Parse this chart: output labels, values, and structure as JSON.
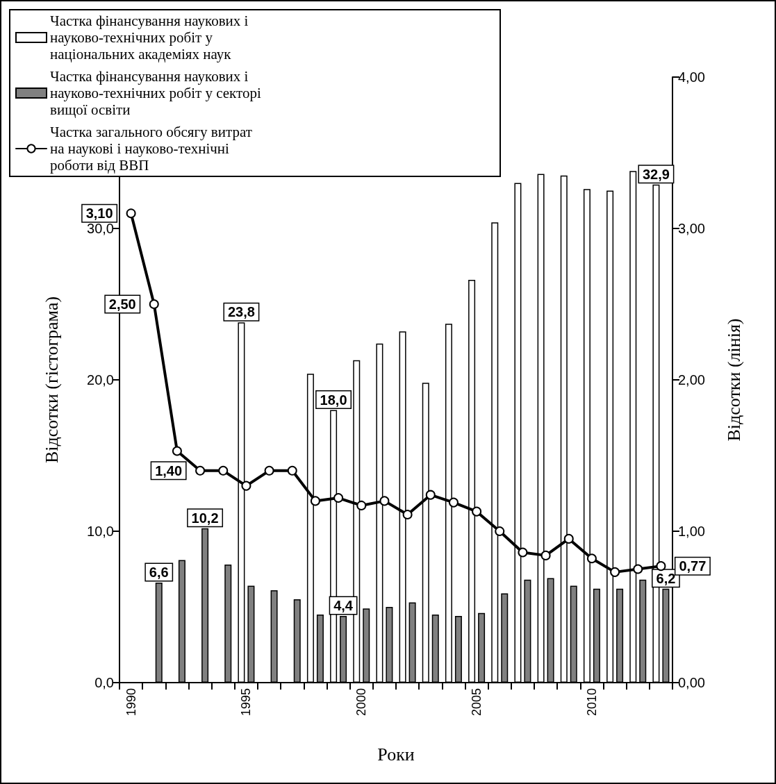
{
  "chart_data": {
    "type": "bar",
    "xlabel": "Роки",
    "ylabel": "Відсотки (гістограма)",
    "y2label": "Відсотки (лінія)",
    "categories": [
      "1990",
      null,
      null,
      null,
      null,
      "1995",
      null,
      null,
      null,
      null,
      "2000",
      null,
      null,
      null,
      null,
      "2005",
      null,
      null,
      null,
      null,
      "2010",
      null,
      null,
      null
    ],
    "series": [
      {
        "name": "Частка фінансування наукових і науково-технічних робіт у національних академіях наук",
        "color": "#ffffff",
        "values": [
          null,
          null,
          null,
          null,
          null,
          23.8,
          null,
          null,
          20.4,
          18.0,
          21.3,
          22.4,
          23.2,
          19.8,
          23.7,
          26.6,
          30.4,
          33.0,
          33.6,
          33.5,
          32.6,
          32.5,
          33.8,
          32.9
        ],
        "value_labels": [
          null,
          null,
          null,
          null,
          null,
          "23,8",
          null,
          null,
          null,
          "18,0",
          null,
          null,
          null,
          null,
          null,
          null,
          null,
          null,
          null,
          null,
          null,
          null,
          null,
          "32,9"
        ]
      },
      {
        "name": "Частка фінансування наукових і науково-технічних робіт у секторі вищої освіти",
        "color": "#808080",
        "values": [
          null,
          6.6,
          8.1,
          10.2,
          7.8,
          6.4,
          6.1,
          5.5,
          4.5,
          4.4,
          4.9,
          5.0,
          5.3,
          4.5,
          4.4,
          4.6,
          5.9,
          6.8,
          6.9,
          6.4,
          6.2,
          6.2,
          6.8,
          6.2
        ],
        "value_labels": [
          null,
          "6,6",
          null,
          "10,2",
          null,
          null,
          null,
          null,
          null,
          "4,4",
          null,
          null,
          null,
          null,
          null,
          null,
          null,
          null,
          null,
          null,
          null,
          null,
          null,
          "6,2"
        ]
      },
      {
        "name": "Частка загального обсягу витрат на наукові і науково-технічні роботи від ВВП",
        "type": "line",
        "axis": "y2",
        "color": "#000000",
        "marker": "circle",
        "line_style": "solid",
        "values": [
          3.1,
          2.5,
          1.53,
          1.4,
          1.4,
          1.3,
          1.4,
          1.4,
          1.2,
          1.22,
          1.17,
          1.2,
          1.11,
          1.24,
          1.19,
          1.13,
          1.0,
          0.86,
          0.84,
          0.95,
          0.82,
          0.73,
          0.75,
          0.77
        ],
        "value_labels": [
          "3,10",
          "2,50",
          null,
          "1,40",
          null,
          null,
          null,
          null,
          null,
          null,
          null,
          null,
          null,
          null,
          null,
          null,
          null,
          null,
          null,
          null,
          null,
          null,
          null,
          "0,77"
        ]
      }
    ],
    "ylim": [
      0,
      40
    ],
    "yticks": [
      {
        "value": 0,
        "label": "0,0"
      },
      {
        "value": 10,
        "label": "10,0"
      },
      {
        "value": 20,
        "label": "20,0"
      },
      {
        "value": 30,
        "label": "30,0"
      }
    ],
    "y2lim": [
      0,
      4
    ],
    "y2ticks": [
      {
        "value": 0,
        "label": "0,00"
      },
      {
        "value": 1,
        "label": "1,00"
      },
      {
        "value": 2,
        "label": "2,00"
      },
      {
        "value": 3,
        "label": "3,00"
      },
      {
        "value": 4,
        "label": "4,00"
      }
    ],
    "legend": "top left",
    "grid": false
  }
}
